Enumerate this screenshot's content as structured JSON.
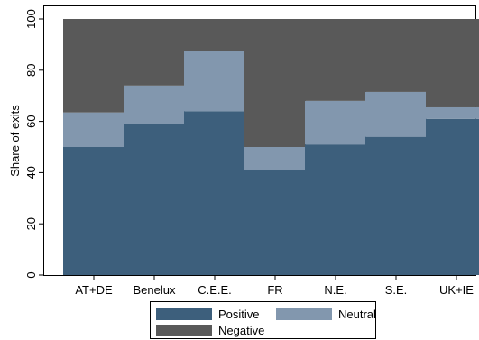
{
  "chart_data": {
    "type": "bar",
    "stacked": true,
    "categories": [
      "AT+DE",
      "Benelux",
      "C.E.E.",
      "FR",
      "N.E.",
      "S.E.",
      "UK+IE"
    ],
    "series": [
      {
        "name": "Positive",
        "color": "#3d5f7c",
        "values": [
          50,
          59,
          64,
          41,
          51,
          54,
          61
        ]
      },
      {
        "name": "Neutral",
        "color": "#8297ae",
        "values": [
          13.5,
          15,
          23.5,
          9,
          17,
          17.5,
          4.5
        ]
      },
      {
        "name": "Negative",
        "color": "#595959",
        "values": [
          36.5,
          26,
          12.5,
          50,
          32,
          28.5,
          34.5
        ]
      }
    ],
    "xlabel": "",
    "ylabel": "Share of exits",
    "ylim": [
      0,
      100
    ],
    "yticks": [
      "0",
      "20",
      "40",
      "60",
      "80",
      "100"
    ],
    "grid": false,
    "legend_position": "bottom"
  }
}
